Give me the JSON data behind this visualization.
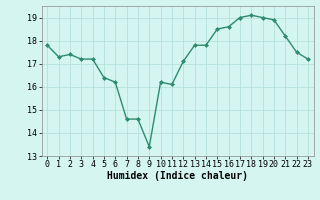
{
  "x": [
    0,
    1,
    2,
    3,
    4,
    5,
    6,
    7,
    8,
    9,
    10,
    11,
    12,
    13,
    14,
    15,
    16,
    17,
    18,
    19,
    20,
    21,
    22,
    23
  ],
  "y": [
    17.8,
    17.3,
    17.4,
    17.2,
    17.2,
    16.4,
    16.2,
    14.6,
    14.6,
    13.4,
    16.2,
    16.1,
    17.1,
    17.8,
    17.8,
    18.5,
    18.6,
    19.0,
    19.1,
    19.0,
    18.9,
    18.2,
    17.5,
    17.2
  ],
  "line_color": "#2e8b6e",
  "marker_color": "#2e8b6e",
  "bg_color": "#d4f5f0",
  "grid_color": "#b0ddd6",
  "xlabel": "Humidex (Indice chaleur)",
  "ylim": [
    13,
    19.5
  ],
  "yticks": [
    13,
    14,
    15,
    16,
    17,
    18,
    19
  ],
  "xticks": [
    0,
    1,
    2,
    3,
    4,
    5,
    6,
    7,
    8,
    9,
    10,
    11,
    12,
    13,
    14,
    15,
    16,
    17,
    18,
    19,
    20,
    21,
    22,
    23
  ],
  "xlabel_fontsize": 7,
  "tick_fontsize": 6
}
